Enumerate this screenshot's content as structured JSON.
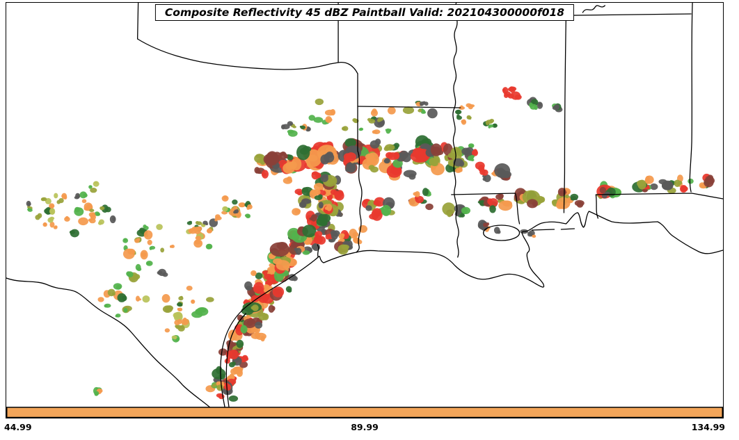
{
  "title_box": {
    "text": "Composite Reflectivity 45 dBZ Paintball Valid: 202104300000f018"
  },
  "axis": {
    "ticks": [
      "44.99",
      "89.99",
      "134.99"
    ]
  },
  "colors": {
    "bar": "#f2a55a",
    "border": "#000000",
    "background": "#ffffff"
  },
  "chart_data": {
    "type": "paintball_map",
    "variable": "Composite Reflectivity",
    "threshold": "45 dBZ",
    "valid": "202104300000f018",
    "x_ticks": [
      "44.99",
      "89.99",
      "134.99"
    ],
    "member_colors": [
      "#e8392e",
      "#f49a4e",
      "#595959",
      "#8a4138",
      "#53b34c",
      "#2e6f33",
      "#99a23a",
      "#b9c35a"
    ],
    "colorsets": {
      "mix": [
        0,
        0,
        0,
        1,
        1,
        1,
        3,
        3,
        4,
        5,
        6,
        2,
        2
      ],
      "west": [
        1,
        1,
        1,
        4,
        4,
        6,
        6,
        7,
        5,
        2
      ],
      "coastla": [
        1,
        1,
        0,
        6,
        4,
        2,
        3,
        5
      ],
      "north": [
        4,
        5,
        1,
        6,
        2
      ],
      "redor": [
        0,
        0,
        1
      ],
      "darks": [
        2,
        4,
        5
      ]
    },
    "clusters": [
      [
        320,
        545,
        26,
        30,
        18,
        4,
        11,
        "mix"
      ],
      [
        333,
        505,
        26,
        30,
        20,
        4,
        11,
        "mix"
      ],
      [
        347,
        468,
        28,
        30,
        22,
        4,
        12,
        "mix"
      ],
      [
        362,
        432,
        30,
        30,
        24,
        4,
        12,
        "mix"
      ],
      [
        380,
        400,
        32,
        28,
        24,
        4,
        12,
        "mix"
      ],
      [
        402,
        372,
        32,
        28,
        24,
        4,
        12,
        "mix"
      ],
      [
        426,
        344,
        32,
        28,
        24,
        4,
        13,
        "mix"
      ],
      [
        450,
        316,
        32,
        28,
        22,
        4,
        12,
        "mix"
      ],
      [
        468,
        292,
        30,
        26,
        18,
        4,
        12,
        "mix"
      ],
      [
        485,
        340,
        30,
        24,
        14,
        4,
        11,
        "mix"
      ],
      [
        395,
        235,
        45,
        26,
        22,
        5,
        13,
        "mix"
      ],
      [
        450,
        222,
        40,
        24,
        24,
        5,
        14,
        "mix"
      ],
      [
        505,
        220,
        40,
        28,
        26,
        5,
        14,
        "mix"
      ],
      [
        558,
        226,
        40,
        28,
        24,
        5,
        14,
        "mix"
      ],
      [
        612,
        218,
        40,
        26,
        22,
        5,
        13,
        "mix"
      ],
      [
        658,
        222,
        34,
        24,
        16,
        4,
        12,
        "mix"
      ],
      [
        700,
        246,
        28,
        18,
        9,
        4,
        10,
        "mix"
      ],
      [
        540,
        295,
        30,
        22,
        10,
        4,
        10,
        "mix"
      ],
      [
        595,
        278,
        26,
        18,
        8,
        4,
        10,
        "mix"
      ],
      [
        470,
        265,
        30,
        22,
        14,
        4,
        11,
        "mix"
      ],
      [
        430,
        285,
        30,
        24,
        14,
        4,
        11,
        "mix"
      ],
      [
        125,
        300,
        70,
        55,
        24,
        3,
        8,
        "west"
      ],
      [
        55,
        295,
        40,
        55,
        13,
        3,
        8,
        "west"
      ],
      [
        205,
        355,
        55,
        55,
        20,
        3,
        9,
        "west"
      ],
      [
        280,
        330,
        45,
        45,
        18,
        3,
        9,
        "west"
      ],
      [
        325,
        295,
        40,
        35,
        15,
        3,
        9,
        "west"
      ],
      [
        165,
        425,
        55,
        45,
        13,
        3,
        8,
        "west"
      ],
      [
        255,
        430,
        42,
        40,
        14,
        3,
        9,
        "west"
      ],
      [
        245,
        475,
        30,
        25,
        6,
        3,
        8,
        "west"
      ],
      [
        300,
        552,
        26,
        16,
        6,
        3,
        8,
        "west"
      ],
      [
        127,
        558,
        12,
        8,
        3,
        3,
        6,
        "west"
      ],
      [
        440,
        165,
        65,
        28,
        14,
        3,
        8,
        "north"
      ],
      [
        525,
        170,
        38,
        26,
        10,
        3,
        8,
        "north"
      ],
      [
        600,
        150,
        32,
        22,
        8,
        3,
        8,
        "north"
      ],
      [
        660,
        160,
        25,
        18,
        6,
        3,
        8,
        "north"
      ],
      [
        725,
        128,
        18,
        11,
        6,
        4,
        8,
        "redor"
      ],
      [
        762,
        146,
        14,
        10,
        5,
        4,
        7,
        "darks"
      ],
      [
        792,
        150,
        12,
        9,
        4,
        4,
        7,
        "darks"
      ],
      [
        700,
        175,
        14,
        10,
        4,
        3,
        7,
        "north"
      ],
      [
        648,
        298,
        22,
        16,
        8,
        4,
        10,
        "coastla"
      ],
      [
        700,
        287,
        28,
        16,
        11,
        4,
        11,
        "coastla"
      ],
      [
        755,
        283,
        28,
        16,
        11,
        4,
        11,
        "coastla"
      ],
      [
        810,
        278,
        28,
        16,
        11,
        4,
        11,
        "coastla"
      ],
      [
        865,
        272,
        28,
        16,
        11,
        4,
        11,
        "coastla"
      ],
      [
        920,
        265,
        28,
        16,
        10,
        4,
        10,
        "coastla"
      ],
      [
        970,
        262,
        26,
        15,
        9,
        4,
        10,
        "coastla"
      ],
      [
        1010,
        260,
        15,
        13,
        6,
        4,
        9,
        "coastla"
      ],
      [
        690,
        320,
        20,
        13,
        5,
        3,
        8,
        "coastla"
      ],
      [
        755,
        332,
        16,
        10,
        4,
        3,
        8,
        "coastla"
      ]
    ]
  }
}
